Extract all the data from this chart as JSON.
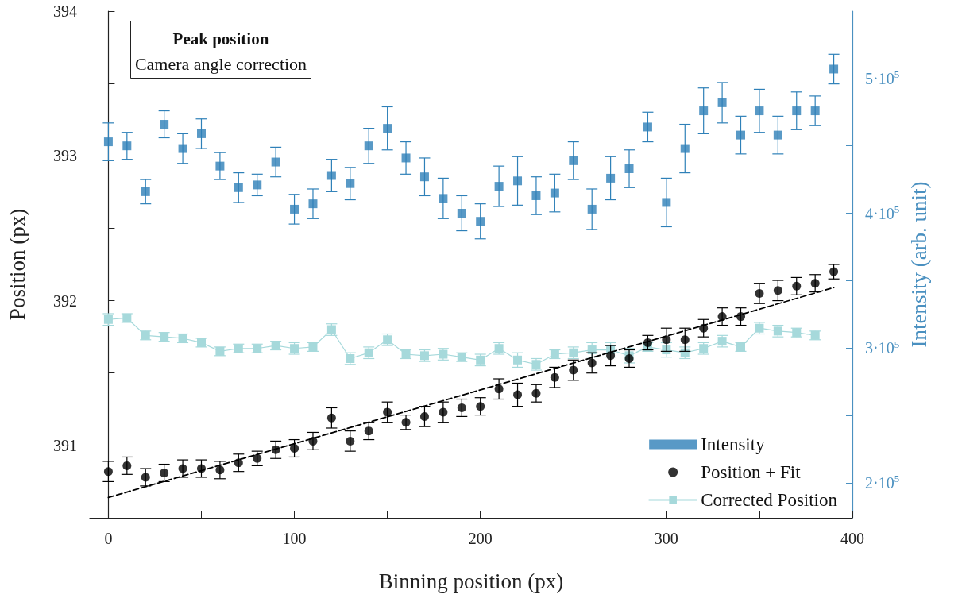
{
  "chart_data": {
    "type": "scatter",
    "title": "Peak position",
    "subtitle": "Camera angle correction",
    "xlabel": "Binning position (px)",
    "ylabel": "Position (px)",
    "y2label": "Intensity (arb. unit)",
    "x": [
      0,
      10,
      20,
      30,
      40,
      50,
      60,
      70,
      80,
      90,
      100,
      110,
      120,
      130,
      140,
      150,
      160,
      170,
      180,
      190,
      200,
      210,
      220,
      230,
      240,
      250,
      260,
      270,
      280,
      290,
      300,
      310,
      320,
      330,
      340,
      350,
      360,
      370,
      380,
      390
    ],
    "series": [
      {
        "name": "Intensity",
        "axis": "y2",
        "marker": "square",
        "color": "#2e80b8",
        "values": [
          453000,
          450000,
          416000,
          466000,
          448000,
          459000,
          435000,
          419000,
          421000,
          438000,
          403000,
          407000,
          428000,
          422000,
          450000,
          463000,
          441000,
          427000,
          411000,
          400000,
          394000,
          420000,
          424000,
          413000,
          415000,
          439000,
          403000,
          426000,
          433000,
          464000,
          408000,
          448000,
          476000,
          482000,
          458000,
          476000,
          458000,
          476000,
          476000,
          507000
        ],
        "errors": [
          14000,
          10000,
          9000,
          10000,
          11000,
          11000,
          10000,
          11000,
          8000,
          11000,
          11000,
          11000,
          12000,
          12000,
          13000,
          16000,
          12000,
          14000,
          15000,
          13000,
          13000,
          15000,
          18000,
          14000,
          14000,
          14000,
          15000,
          16000,
          14000,
          11000,
          18000,
          18000,
          17000,
          15000,
          14000,
          16000,
          14000,
          14000,
          11000,
          11000
        ]
      },
      {
        "name": "Position + Fit",
        "marker": "circle",
        "color": "#000000",
        "values": [
          390.82,
          390.86,
          390.78,
          390.81,
          390.84,
          390.84,
          390.83,
          390.88,
          390.91,
          390.97,
          390.98,
          391.03,
          391.19,
          391.03,
          391.1,
          391.23,
          391.16,
          391.2,
          391.23,
          391.26,
          391.27,
          391.39,
          391.35,
          391.36,
          391.47,
          391.52,
          391.57,
          391.62,
          391.6,
          391.71,
          391.73,
          391.73,
          391.81,
          391.89,
          391.89,
          392.05,
          392.07,
          392.1,
          392.12,
          392.2
        ],
        "errors": [
          0.07,
          0.06,
          0.06,
          0.06,
          0.06,
          0.06,
          0.06,
          0.06,
          0.05,
          0.06,
          0.06,
          0.06,
          0.07,
          0.07,
          0.06,
          0.07,
          0.05,
          0.07,
          0.07,
          0.06,
          0.06,
          0.07,
          0.08,
          0.06,
          0.07,
          0.07,
          0.07,
          0.07,
          0.06,
          0.05,
          0.08,
          0.08,
          0.06,
          0.06,
          0.06,
          0.07,
          0.07,
          0.06,
          0.06,
          0.05
        ]
      },
      {
        "type": "line",
        "x": [
          0,
          390
        ],
        "values": [
          390.64,
          392.09
        ],
        "line_style": "dashed",
        "marker": "none",
        "color": "#000000"
      },
      {
        "name": "Corrected Position",
        "type": "line",
        "marker": "square",
        "color": "#a6d9db",
        "x": [
          0,
          10,
          20,
          30,
          40,
          50,
          60,
          70,
          80,
          90,
          100,
          110,
          120,
          130,
          140,
          150,
          160,
          170,
          180,
          190,
          200,
          210,
          220,
          230,
          240,
          250,
          260,
          270,
          280,
          290,
          300,
          310,
          320,
          330,
          340,
          350,
          360,
          370,
          380
        ],
        "values": [
          391.87,
          391.88,
          391.76,
          391.75,
          391.74,
          391.71,
          391.65,
          391.67,
          391.67,
          391.69,
          391.67,
          391.68,
          391.8,
          391.6,
          391.64,
          391.73,
          391.63,
          391.62,
          391.63,
          391.61,
          391.59,
          391.67,
          391.59,
          391.56,
          391.63,
          391.64,
          391.66,
          391.66,
          391.62,
          391.68,
          391.66,
          391.64,
          391.67,
          391.72,
          391.68,
          391.81,
          391.79,
          391.78,
          391.76
        ],
        "errors": [
          0.04,
          0.03,
          0.03,
          0.03,
          0.03,
          0.03,
          0.03,
          0.03,
          0.03,
          0.03,
          0.04,
          0.03,
          0.04,
          0.04,
          0.04,
          0.04,
          0.03,
          0.04,
          0.04,
          0.03,
          0.04,
          0.04,
          0.05,
          0.04,
          0.03,
          0.04,
          0.05,
          0.05,
          0.05,
          0.03,
          0.05,
          0.04,
          0.04,
          0.04,
          0.03,
          0.04,
          0.04,
          0.03,
          0.03
        ]
      }
    ],
    "xlim": [
      -10,
      400
    ],
    "xticks": [
      0,
      {
        "value": 50,
        "label": null
      },
      100,
      {
        "value": 150,
        "label": null
      },
      200,
      {
        "value": 250,
        "label": null
      },
      300,
      {
        "value": 350,
        "label": null
      },
      400
    ],
    "ylim": [
      390.5,
      394
    ],
    "yticks": [
      391,
      {
        "value": 391.5,
        "label": null
      },
      392,
      {
        "value": 392.5,
        "label": null
      },
      393,
      {
        "value": 393.5,
        "label": null
      },
      394
    ],
    "y2lim": [
      174000,
      550000
    ],
    "y2ticks": [
      {
        "value": 200000,
        "label": "2·10$^{5}$"
      },
      {
        "value": 250000,
        "label": null
      },
      {
        "value": 300000,
        "label": "3·10$^{5}$"
      },
      {
        "value": 350000,
        "label": null
      },
      {
        "value": 400000,
        "label": "4·10$^{5}$"
      },
      {
        "value": 450000,
        "label": null
      },
      {
        "value": 500000,
        "label": "5·10$^{5}$"
      }
    ],
    "grid": false,
    "legend": "bottom right"
  }
}
